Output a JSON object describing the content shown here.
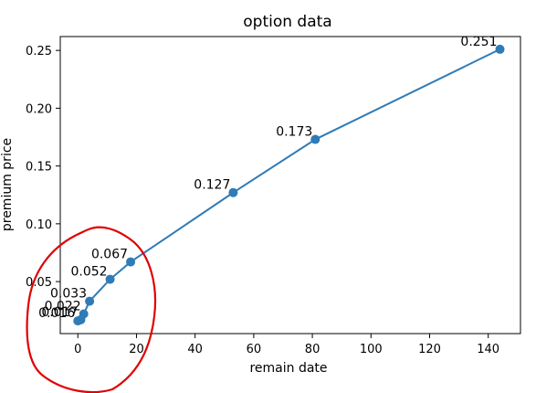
{
  "chart_data": {
    "type": "line",
    "title": "option data",
    "xlabel": "remain date",
    "ylabel": "premium price",
    "xlim": [
      -6,
      151
    ],
    "ylim": [
      0.005,
      0.262
    ],
    "xticks": [
      0,
      20,
      40,
      60,
      80,
      100,
      120,
      140
    ],
    "yticks": [
      0.05,
      0.1,
      0.15,
      0.2,
      0.25
    ],
    "x_tick_labels": [
      "0",
      "20",
      "40",
      "60",
      "80",
      "100",
      "120",
      "140"
    ],
    "y_tick_labels": [
      "0.05",
      "0.10",
      "0.15",
      "0.20",
      "0.25"
    ],
    "grid": false,
    "series": [
      {
        "color": "#2f7bb6",
        "points": [
          {
            "x": 0,
            "y": 0.016,
            "label": "0.016"
          },
          {
            "x": 1,
            "y": 0.017,
            "label": "0.017"
          },
          {
            "x": 2,
            "y": 0.022,
            "label": "0.022"
          },
          {
            "x": 4,
            "y": 0.033,
            "label": "0.033"
          },
          {
            "x": 11,
            "y": 0.052,
            "label": "0.052"
          },
          {
            "x": 18,
            "y": 0.067,
            "label": "0.067"
          },
          {
            "x": 53,
            "y": 0.127,
            "label": "0.127"
          },
          {
            "x": 81,
            "y": 0.173,
            "label": "0.173"
          },
          {
            "x": 144,
            "y": 0.251,
            "label": "0.251"
          }
        ]
      }
    ]
  },
  "annotation": {
    "color": "#e00000",
    "shape": "hand-drawn circle around the points near x=0"
  }
}
